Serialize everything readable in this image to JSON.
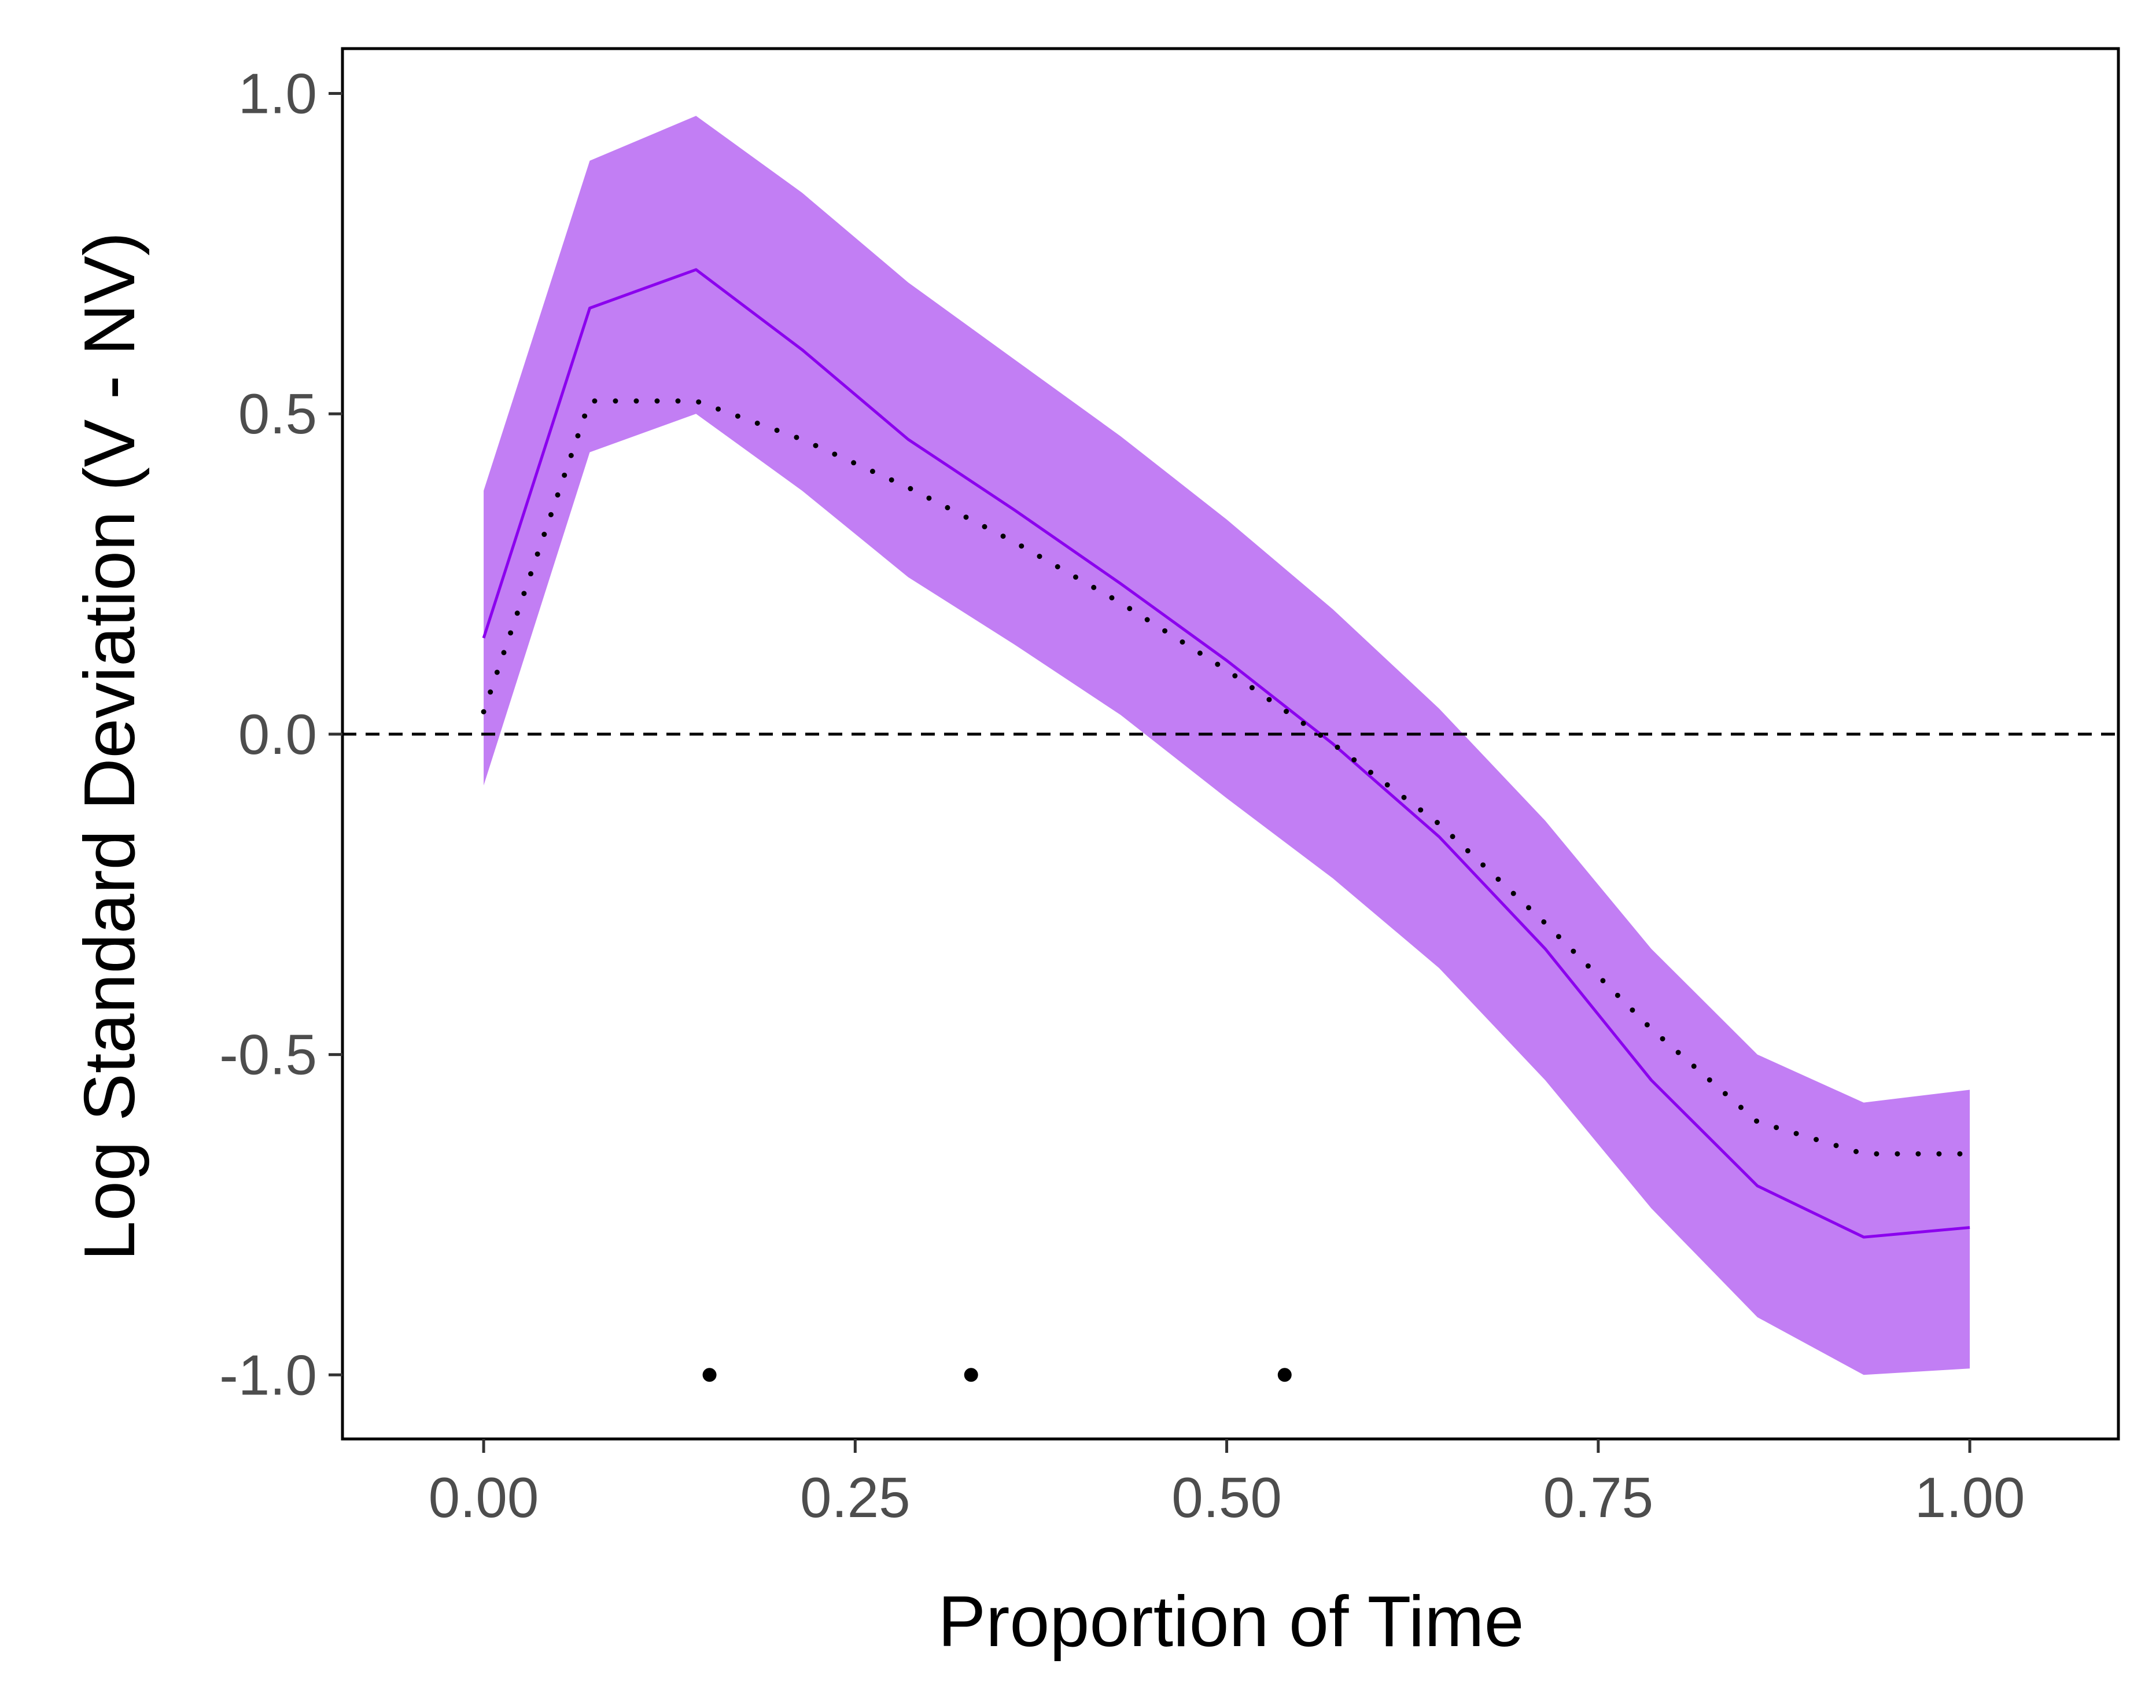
{
  "chart_data": {
    "type": "line",
    "title": "",
    "xlabel": "Proportion of Time",
    "ylabel": "Log Standard Deviation (V - NV)",
    "xlim": [
      -0.095,
      1.1
    ],
    "ylim": [
      -1.1,
      1.07
    ],
    "x_ticks": [
      0,
      0.25,
      0.5,
      0.75,
      1
    ],
    "x_tick_labels": [
      "0.00",
      "0.25",
      "0.50",
      "0.75",
      "1.00"
    ],
    "y_ticks": [
      1,
      0.5,
      0,
      -0.5,
      -1
    ],
    "y_tick_labels": [
      "1.0",
      "0.5",
      "0.0",
      "-0.5",
      "-1.0"
    ],
    "grid": false,
    "x": [
      0,
      0.0714,
      0.1429,
      0.2143,
      0.2857,
      0.3571,
      0.4286,
      0.5,
      0.5714,
      0.6429,
      0.7143,
      0.7857,
      0.8571,
      0.9286,
      1.0
    ],
    "series": [
      {
        "style": "ribbon",
        "color": "#c27ef4",
        "lower": [
          -0.08,
          0.44,
          0.5,
          0.38,
          0.245,
          0.14,
          0.03,
          -0.1,
          -0.225,
          -0.365,
          -0.54,
          -0.74,
          -0.91,
          -1.0,
          -0.99
        ],
        "upper": [
          0.38,
          0.895,
          0.965,
          0.845,
          0.705,
          0.585,
          0.465,
          0.335,
          0.195,
          0.04,
          -0.135,
          -0.335,
          -0.5,
          -0.575,
          -0.555
        ]
      },
      {
        "style": "solid",
        "color": "#8b00ee",
        "values": [
          0.15,
          0.665,
          0.725,
          0.6,
          0.46,
          0.35,
          0.235,
          0.115,
          -0.015,
          -0.16,
          -0.335,
          -0.54,
          -0.705,
          -0.785,
          -0.77
        ]
      },
      {
        "style": "dotted",
        "color": "#000000",
        "values": [
          0.035,
          0.52,
          0.52,
          0.46,
          0.385,
          0.3,
          0.205,
          0.1,
          -0.015,
          -0.14,
          -0.295,
          -0.46,
          -0.605,
          -0.655,
          -0.655
        ]
      }
    ],
    "reference_line": {
      "y": 0,
      "style": "dashed",
      "color": "#000000"
    },
    "markers": {
      "x": [
        0.152,
        0.328,
        0.539
      ],
      "y": -1.0,
      "color": "#000000"
    }
  }
}
